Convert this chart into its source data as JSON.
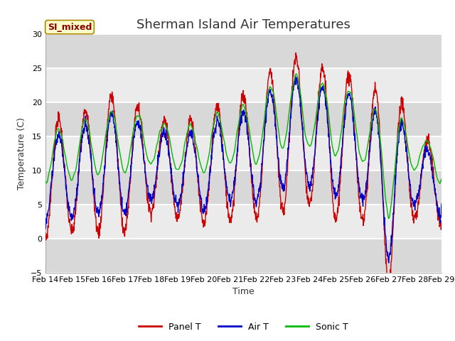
{
  "title": "Sherman Island Air Temperatures",
  "xlabel": "Time",
  "ylabel": "Temperature (C)",
  "ylim": [
    -5,
    30
  ],
  "yticks": [
    -5,
    0,
    5,
    10,
    15,
    20,
    25,
    30
  ],
  "x_tick_labels": [
    "Feb 14",
    "Feb 15",
    "Feb 16",
    "Feb 17",
    "Feb 18",
    "Feb 19",
    "Feb 20",
    "Feb 21",
    "Feb 22",
    "Feb 23",
    "Feb 24",
    "Feb 25",
    "Feb 26",
    "Feb 27",
    "Feb 28",
    "Feb 29"
  ],
  "legend_labels": [
    "Panel T",
    "Air T",
    "Sonic T"
  ],
  "legend_colors": [
    "#cc0000",
    "#0000cc",
    "#00bb00"
  ],
  "annotation_text": "SI_mixed",
  "annotation_text_color": "#8b0000",
  "annotation_bg": "#ffffcc",
  "annotation_edge": "#aa8800",
  "bg_color_dark": "#d8d8d8",
  "bg_color_light": "#ebebeb",
  "panel_t_color": "#cc0000",
  "air_t_color": "#0000cc",
  "sonic_t_color": "#00bb00",
  "title_fontsize": 13,
  "axis_label_fontsize": 9,
  "tick_fontsize": 8,
  "line_width": 1.0
}
